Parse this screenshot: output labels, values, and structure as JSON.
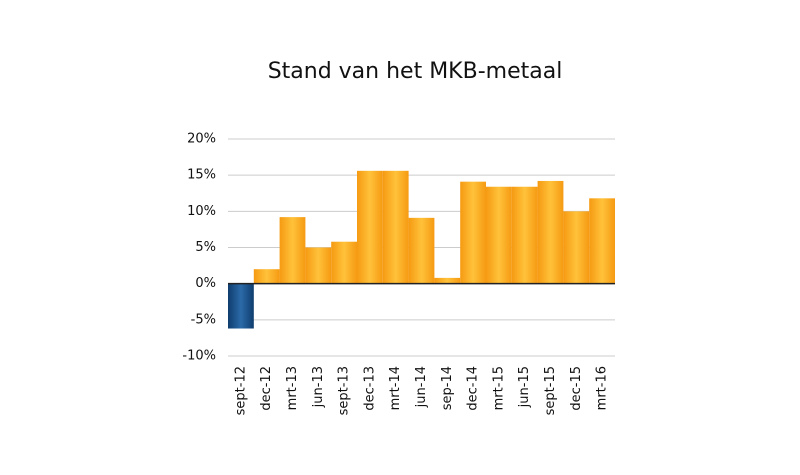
{
  "chart_data": {
    "type": "bar",
    "title": "Stand van het MKB-metaal",
    "categories": [
      "sept-12",
      "dec-12",
      "mrt-13",
      "jun-13",
      "sept-13",
      "dec-13",
      "mrt-14",
      "jun-14",
      "sep-14",
      "dec-14",
      "mrt-15",
      "jun-15",
      "sept-15",
      "dec-15",
      "mrt-16"
    ],
    "values": [
      -6.2,
      2,
      9.2,
      5,
      5.8,
      15.6,
      15.6,
      9.1,
      0.8,
      14.1,
      13.4,
      13.4,
      14.2,
      10,
      11.8
    ],
    "color": "#f7a21b",
    "negative_color": "#1d4f86",
    "ylim": [
      -10,
      20
    ],
    "yticks": [
      {
        "value": -10,
        "label": "-10%"
      },
      {
        "value": -5,
        "label": "-5%"
      },
      {
        "value": 0,
        "label": "0%"
      },
      {
        "value": 5,
        "label": "5%"
      },
      {
        "value": 10,
        "label": "10%"
      },
      {
        "value": 15,
        "label": "15%"
      },
      {
        "value": 20,
        "label": "20%"
      }
    ],
    "grid": true
  }
}
